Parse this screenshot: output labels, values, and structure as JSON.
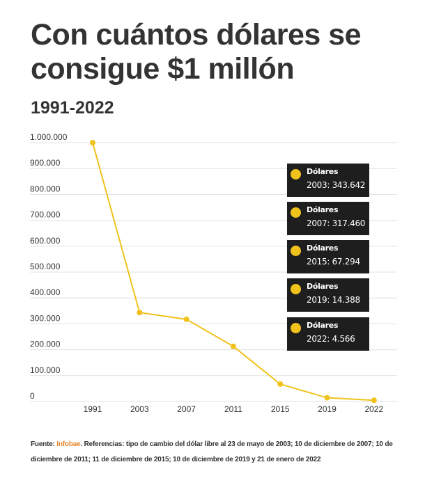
{
  "header": {
    "title": "Con cuántos dólares se consigue $1 millón",
    "subtitle": "1991-2022"
  },
  "colors": {
    "line": "#f0c21b",
    "grid": "#e0e0e0",
    "tooltip_bg": "#1e1e1e",
    "source_link": "#e8842c"
  },
  "chart_data": {
    "type": "line",
    "title": "Con cuántos dólares se consigue $1 millón",
    "subtitle": "1991-2022",
    "xlabel": "",
    "ylabel": "",
    "x": [
      "1991",
      "2003",
      "2007",
      "2011",
      "2015",
      "2019",
      "2022"
    ],
    "series": [
      {
        "name": "Dólares",
        "values": [
          1000000,
          343642,
          317460,
          213000,
          67294,
          14388,
          4566
        ]
      }
    ],
    "ylim": [
      0,
      1000000
    ],
    "yticks": [
      0,
      100000,
      200000,
      300000,
      400000,
      500000,
      600000,
      700000,
      800000,
      900000,
      1000000
    ],
    "ytick_labels": [
      "0",
      "100.000",
      "200.000",
      "300.000",
      "400.000",
      "500.000",
      "600.000",
      "700.000",
      "800.000",
      "900.000",
      "1.000.000"
    ],
    "grid": true,
    "legend": "none",
    "annotations": [
      {
        "label": "Dólares",
        "text": "2003: 343.642"
      },
      {
        "label": "Dólares",
        "text": "2007: 317.460"
      },
      {
        "label": "Dólares",
        "text": "2015: 67.294"
      },
      {
        "label": "Dólares",
        "text": "2019: 14.388"
      },
      {
        "label": "Dólares",
        "text": "2022: 4.566"
      }
    ]
  },
  "footnote": {
    "source_prefix": "Fuente: ",
    "source_name": "Infobae",
    "text": ". Referencias: tipo de cambio del dólar libre al 23 de mayo de 2003; 10 de diciembre de 2007; 10 de diciembre de 2011; 11 de diciembre de 2015; 10 de diciembre de 2019 y 21 de enero de 2022"
  }
}
